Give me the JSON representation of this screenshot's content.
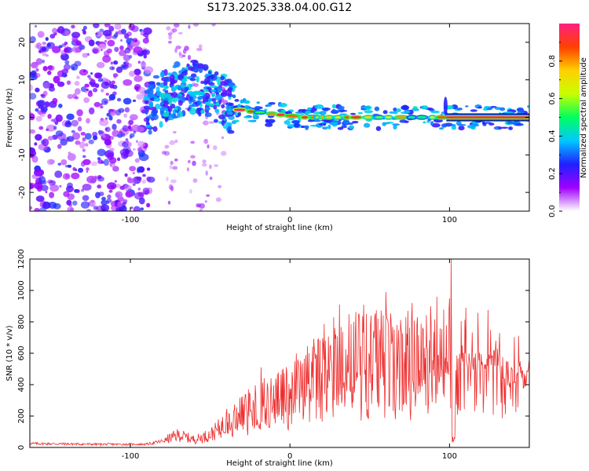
{
  "title": "S173.2025.338.04.00.G12",
  "chart_data": [
    {
      "type": "heatmap",
      "name": "spectrogram",
      "xlabel": "Height of straight line (km)",
      "ylabel": "Frequency (Hz)",
      "xlim": [
        -163,
        150
      ],
      "ylim": [
        -25,
        25
      ],
      "x_ticks": [
        -100,
        0,
        100
      ],
      "x_tick_labels": [
        "-100",
        "0",
        "100"
      ],
      "y_ticks": [
        -20,
        -10,
        0,
        10,
        20
      ],
      "y_tick_labels": [
        "-20",
        "-10",
        "0",
        "10",
        "20"
      ],
      "noise_region_x": [
        -163,
        -90
      ],
      "scatter_region_x": [
        -90,
        -35
      ],
      "scatter_center_y": [
        2,
        8
      ],
      "ridge_x": [
        -35,
        150
      ],
      "ridge_y": [
        2,
        0
      ],
      "solid_ridge_start_x": 98,
      "colorbar": {
        "label": "Normalized spectral amplitude",
        "range": [
          0,
          1
        ],
        "ticks": [
          0.0,
          0.2,
          0.4,
          0.6,
          0.8
        ],
        "tick_labels": [
          "0.0",
          "0.2",
          "0.4",
          "0.6",
          "0.8"
        ],
        "colors": [
          "#ffffff",
          "#a000ff",
          "#2020ff",
          "#00c8ff",
          "#00ff60",
          "#c8ff00",
          "#ffd000",
          "#ff4000",
          "#ff2080"
        ]
      }
    },
    {
      "type": "line",
      "name": "snr",
      "xlabel": "Height of straight line (km)",
      "ylabel": "SNR (10 * v/v)",
      "xlim": [
        -163,
        150
      ],
      "ylim": [
        0,
        1200
      ],
      "x_ticks": [
        -100,
        0,
        100
      ],
      "x_tick_labels": [
        "-100",
        "0",
        "100"
      ],
      "y_ticks": [
        0,
        200,
        400,
        600,
        800,
        1000,
        1200
      ],
      "y_tick_labels": [
        "0",
        "200",
        "400",
        "600",
        "800",
        "1000",
        "1200"
      ],
      "color": "#ee3030",
      "envelope_x": [
        -163,
        -120,
        -90,
        -80,
        -70,
        -60,
        -50,
        -40,
        -30,
        -20,
        -10,
        0,
        10,
        20,
        30,
        40,
        50,
        60,
        70,
        80,
        90,
        100,
        102,
        104,
        110,
        120,
        130,
        135,
        150
      ],
      "envelope_y": [
        25,
        20,
        20,
        40,
        80,
        50,
        80,
        150,
        220,
        260,
        300,
        350,
        420,
        480,
        520,
        560,
        560,
        580,
        560,
        570,
        580,
        600,
        300,
        560,
        540,
        540,
        570,
        470,
        460
      ],
      "spikes": [
        [
          -26,
          370
        ],
        [
          -18,
          510
        ],
        [
          -12,
          440
        ],
        [
          5,
          560
        ],
        [
          12,
          600
        ],
        [
          22,
          680
        ],
        [
          28,
          760
        ],
        [
          31,
          910
        ],
        [
          40,
          800
        ],
        [
          48,
          850
        ],
        [
          55,
          820
        ],
        [
          60,
          990
        ],
        [
          67,
          780
        ],
        [
          74,
          870
        ],
        [
          80,
          830
        ],
        [
          88,
          900
        ],
        [
          92,
          960
        ],
        [
          100,
          950
        ],
        [
          101,
          1200
        ],
        [
          108,
          650
        ],
        [
          129,
          680
        ]
      ]
    }
  ]
}
